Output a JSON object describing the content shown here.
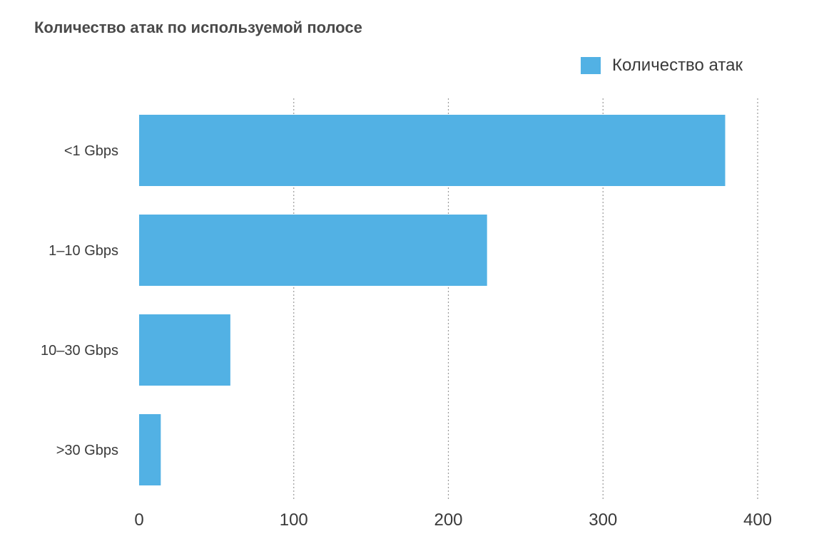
{
  "chart_data": {
    "type": "bar",
    "orientation": "horizontal",
    "title": "Количество атак по используемой полосе",
    "categories": [
      "<1 Gbps",
      "1–10 Gbps",
      "10–30 Gbps",
      ">30 Gbps"
    ],
    "series": [
      {
        "name": "Количество атак",
        "values": [
          379,
          225,
          59,
          14
        ],
        "color": "#52b1e4"
      }
    ],
    "xticks": [
      0,
      100,
      200,
      300,
      400
    ],
    "xlim": [
      0,
      400
    ],
    "grid": "vertical dotted",
    "legend_position": "top-right"
  }
}
